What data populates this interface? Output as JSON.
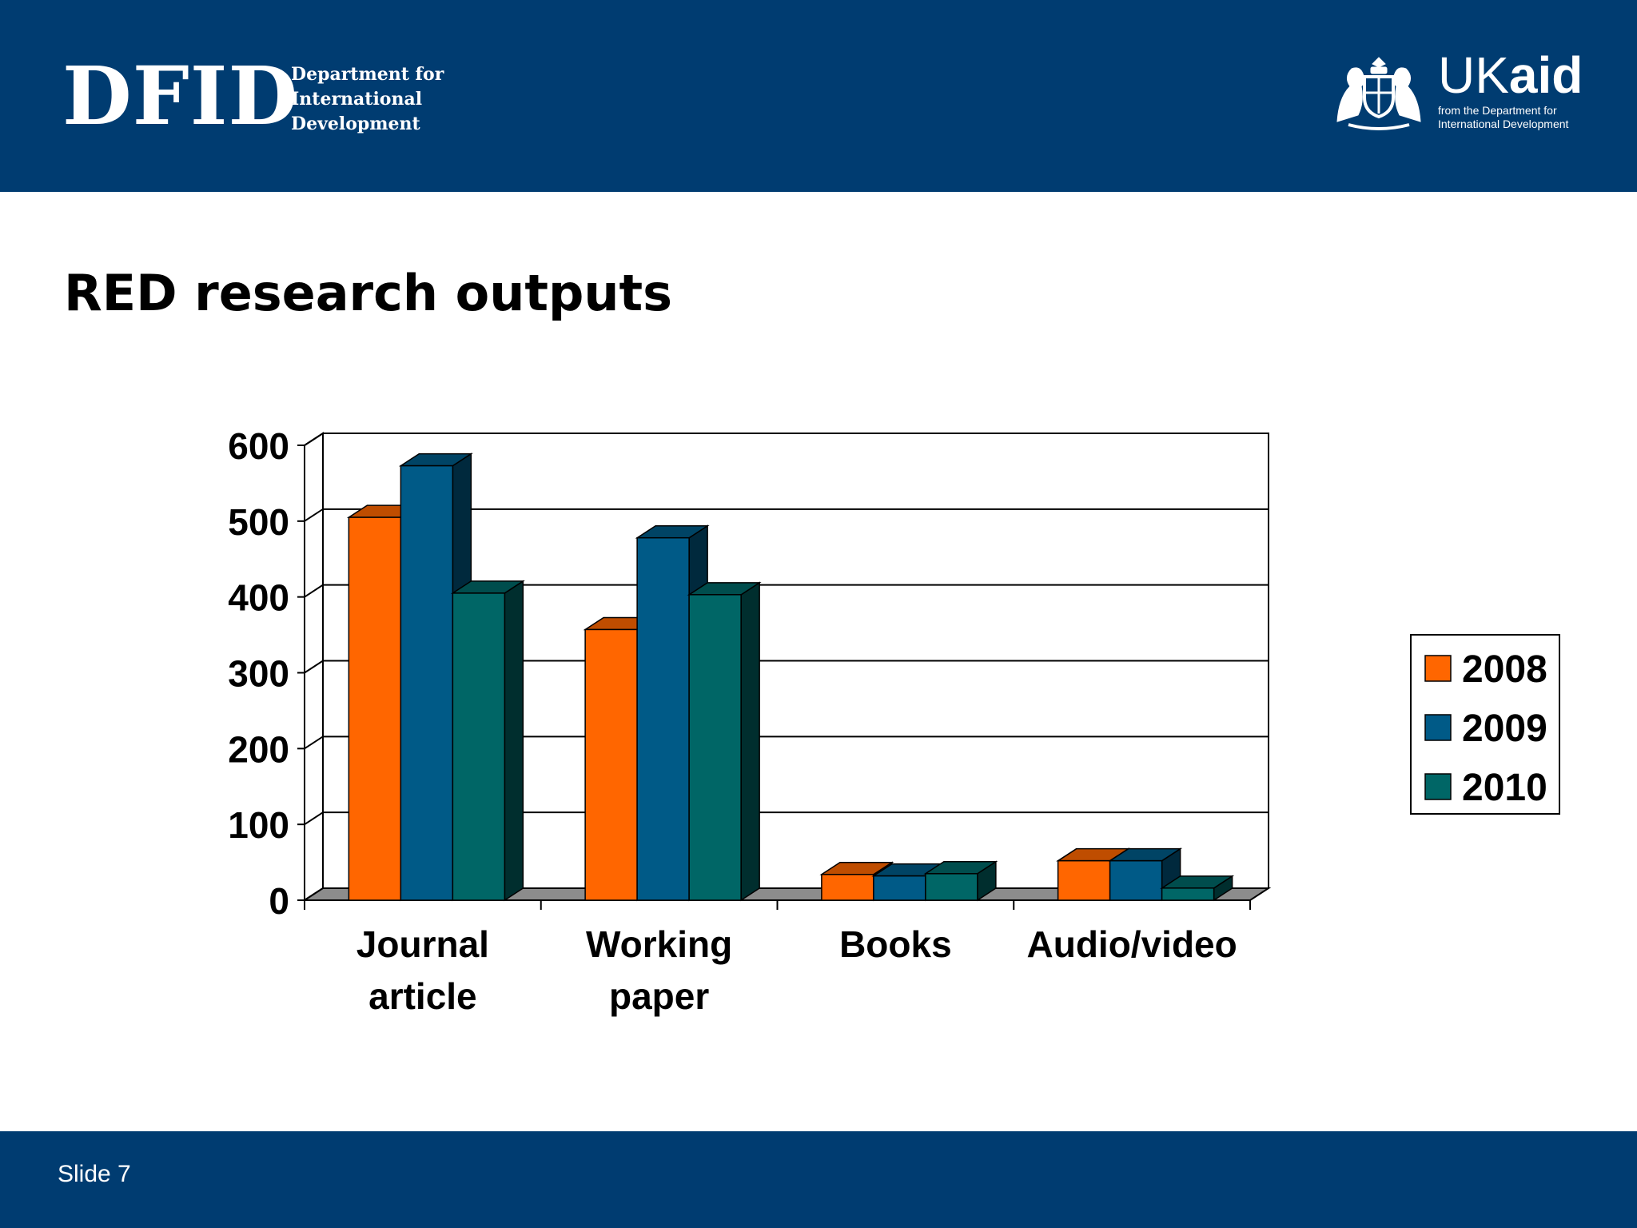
{
  "header": {
    "logo_left": {
      "letters": "DFID",
      "lines": [
        "Department for",
        "International",
        "Development"
      ]
    },
    "logo_right": {
      "uk": "UK",
      "aid": "aid",
      "tagline": [
        "from the Department for",
        "International Development"
      ],
      "icon": "royal-crest-icon"
    }
  },
  "slide": {
    "title": "RED research outputs",
    "footer": "Slide 7"
  },
  "colors": {
    "banner": "#003c71",
    "series": [
      "#ff6600",
      "#005a87",
      "#006666"
    ]
  },
  "chart_data": {
    "type": "bar",
    "title": "",
    "xlabel": "",
    "ylabel": "",
    "categories": [
      [
        "Journal",
        "article"
      ],
      [
        "Working",
        "paper"
      ],
      [
        "Books"
      ],
      [
        "Audio/video"
      ]
    ],
    "series": [
      {
        "name": "2008",
        "values": [
          505,
          357,
          34,
          52
        ]
      },
      {
        "name": "2009",
        "values": [
          573,
          478,
          32,
          52
        ]
      },
      {
        "name": "2010",
        "values": [
          405,
          403,
          35,
          16
        ]
      }
    ],
    "ylim": [
      0,
      600
    ],
    "yticks": [
      "0",
      "100",
      "200",
      "300",
      "400",
      "500",
      "600"
    ],
    "grid": true,
    "legend_position": "right",
    "style": "3d-clustered-column"
  }
}
